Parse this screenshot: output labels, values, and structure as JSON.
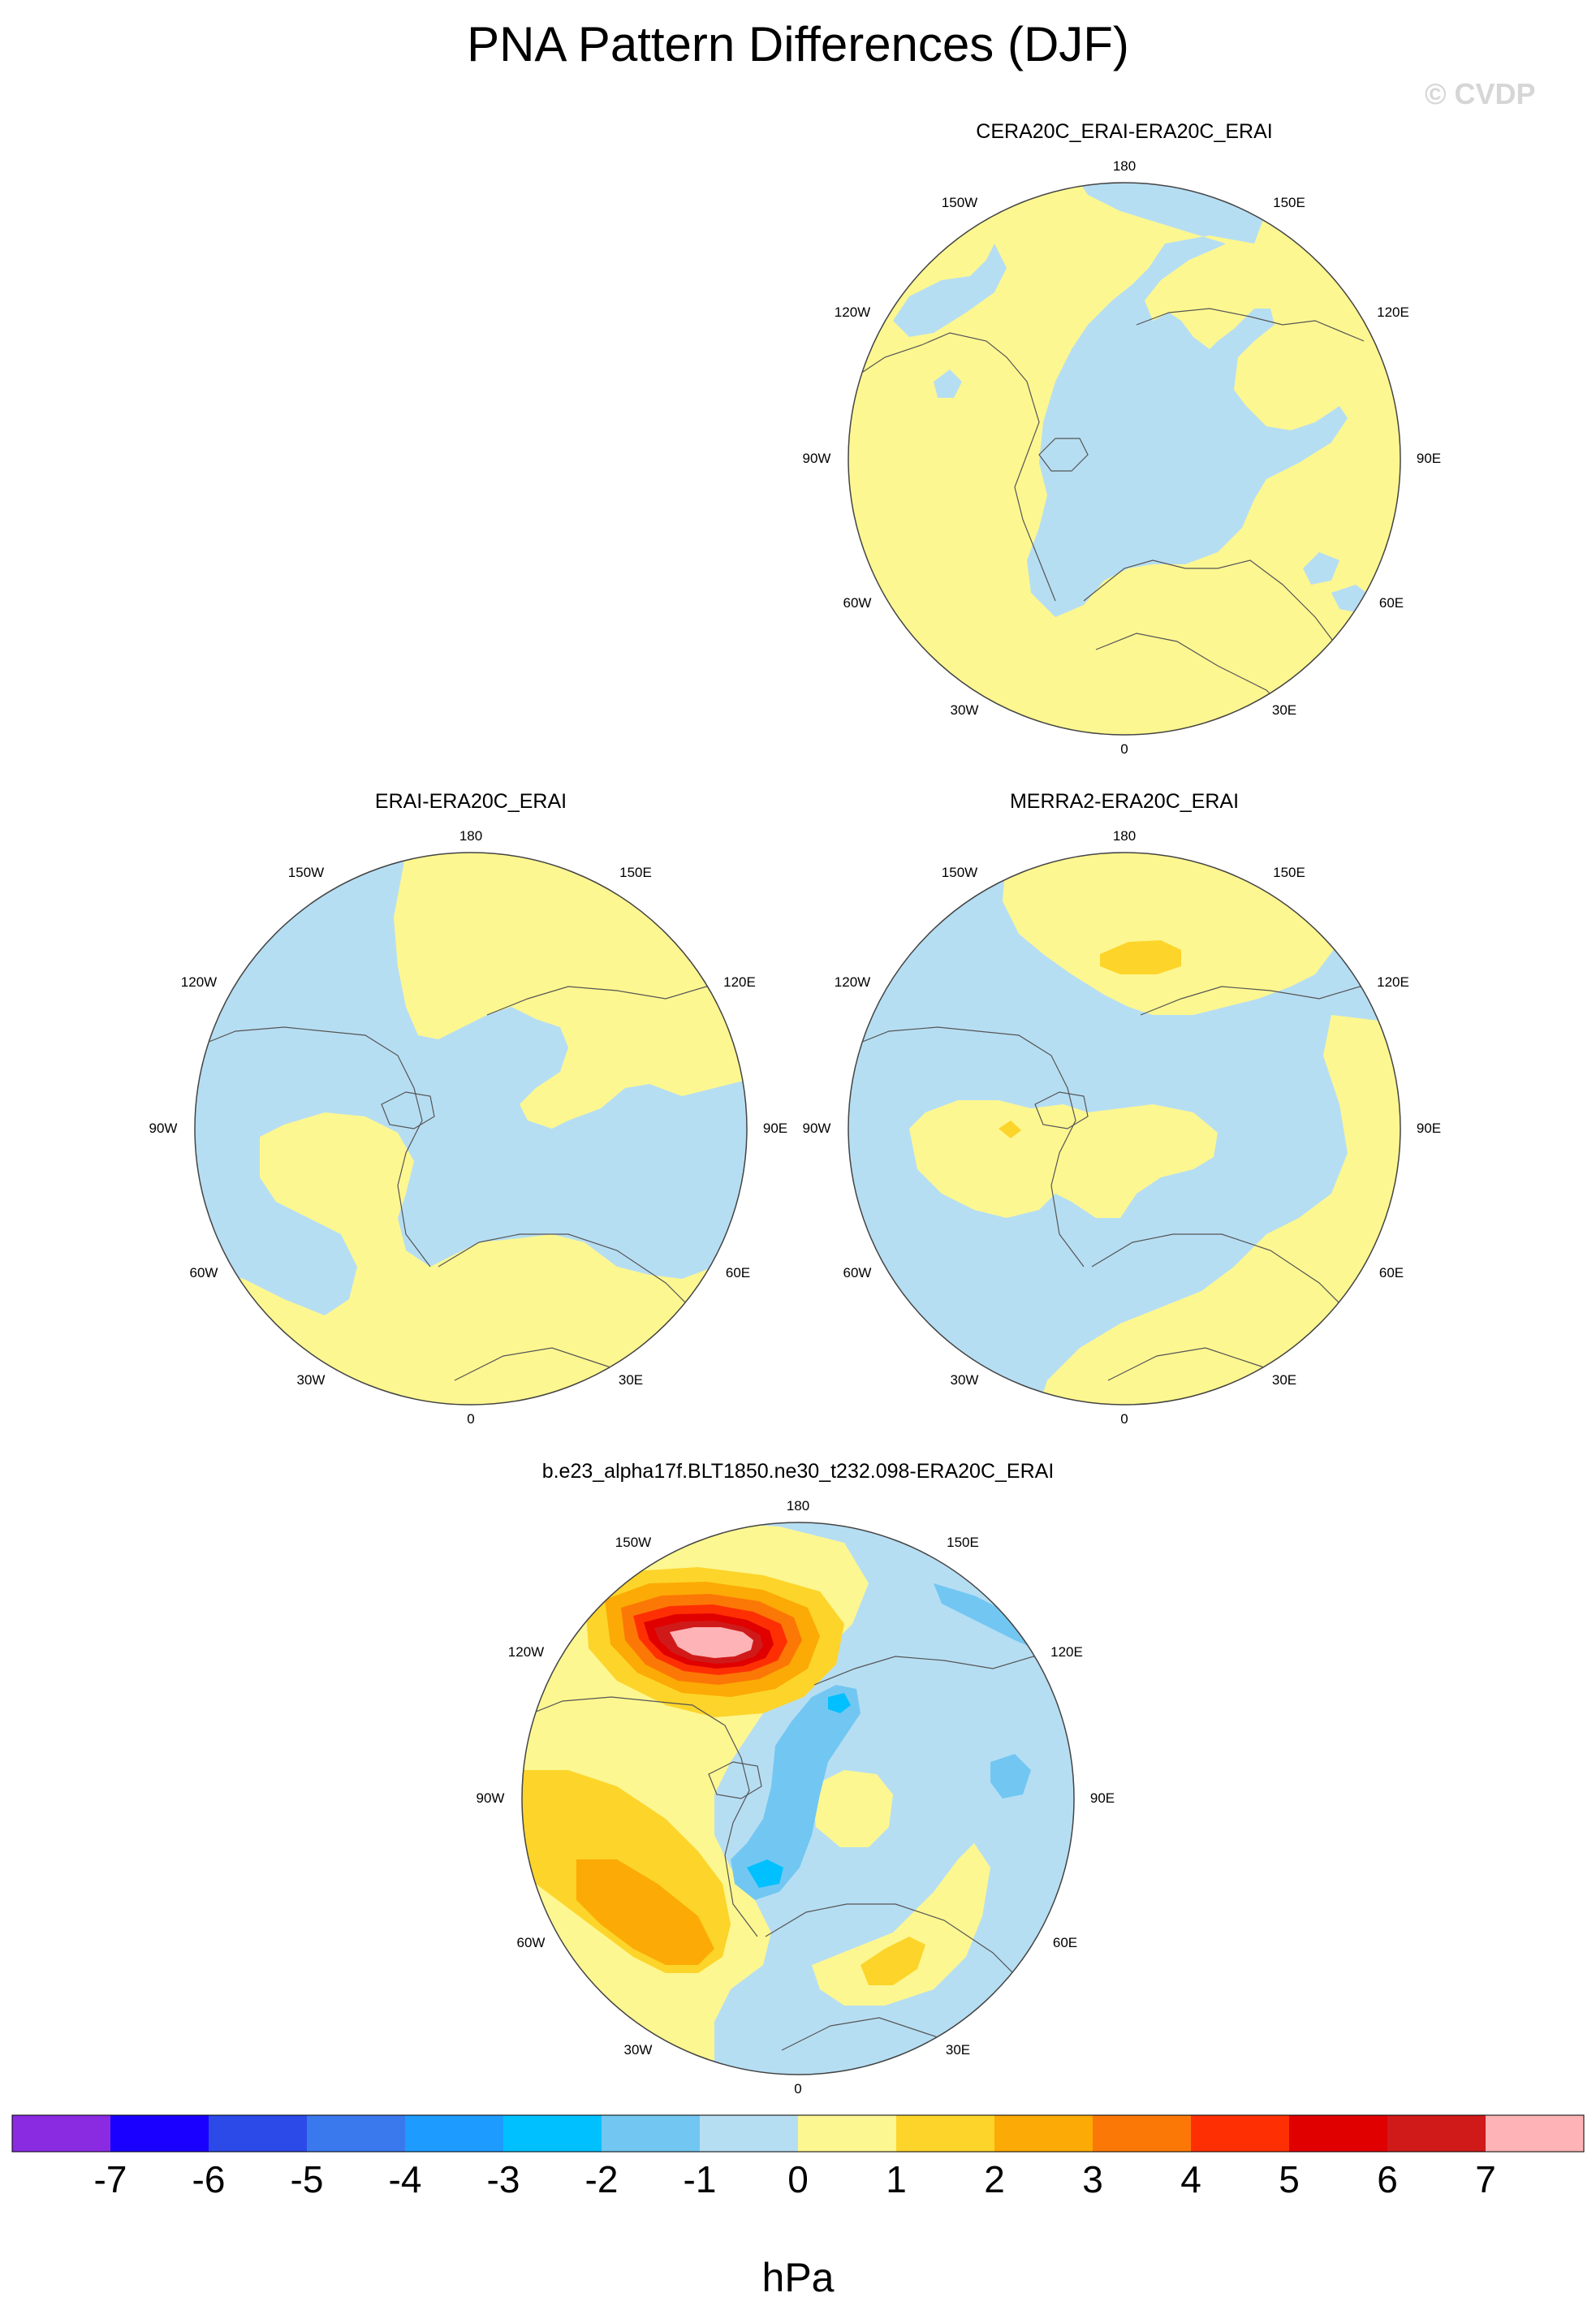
{
  "figure": {
    "title": "PNA Pattern Differences (DJF)",
    "watermark": "© CVDP"
  },
  "panels": [
    {
      "id": "cera20c",
      "title": "CERA20C_ERAI-ERA20C_ERAI",
      "projection": "north-polar-stereographic",
      "dominant_sign": "mostly 0 to 1 hPa, negative (−1 to 0) over the Arctic and Eurasia"
    },
    {
      "id": "erai",
      "title": "ERAI-ERA20C_ERAI",
      "projection": "north-polar-stereographic",
      "dominant_sign": "mixed −1 to 1 hPa"
    },
    {
      "id": "merra2",
      "title": "MERRA2-ERA20C_ERAI",
      "projection": "north-polar-stereographic",
      "dominant_sign": "mixed −1 to 1 hPa, small 1 to 2 hPa area over the North Pacific"
    },
    {
      "id": "model",
      "title": "b.e23_alpha17f.BLT1850.ne30_t232.098-ERA20C_ERAI",
      "projection": "north-polar-stereographic",
      "dominant_sign": "strong positive (> 7 hPa) over the North Pacific, positive 2 to 3 hPa over the North Atlantic, negative −3 to −2 hPa over Canada/Greenland"
    }
  ],
  "longitude_labels": [
    "180",
    "150E",
    "120E",
    "90E",
    "60E",
    "30E",
    "0",
    "30W",
    "60W",
    "90W",
    "120W",
    "150W"
  ],
  "colorbar": {
    "unit": "hPa",
    "tick_labels": [
      "-7",
      "-6",
      "-5",
      "-4",
      "-3",
      "-2",
      "-1",
      "0",
      "1",
      "2",
      "3",
      "4",
      "5",
      "6",
      "7"
    ],
    "colors": [
      "#8a2be2",
      "#1a00ff",
      "#2c4ae8",
      "#3a78ee",
      "#1e9bff",
      "#00c0ff",
      "#72c7f2",
      "#b6def3",
      "#fdf791",
      "#fdd42a",
      "#fcaa05",
      "#fc7806",
      "#fe3003",
      "#e00000",
      "#d01a1a",
      "#feb3b6"
    ]
  },
  "colors": {
    "neg1": "#b6def3",
    "pos1": "#fdf791",
    "pos2": "#fdd42a",
    "pos3": "#fcaa05",
    "pos4": "#fc7806",
    "pos5": "#fe3003",
    "pos6": "#e00000",
    "pos7": "#d01a1a",
    "pos8": "#feb3b6",
    "neg2": "#72c7f2",
    "neg3": "#00c0ff"
  }
}
